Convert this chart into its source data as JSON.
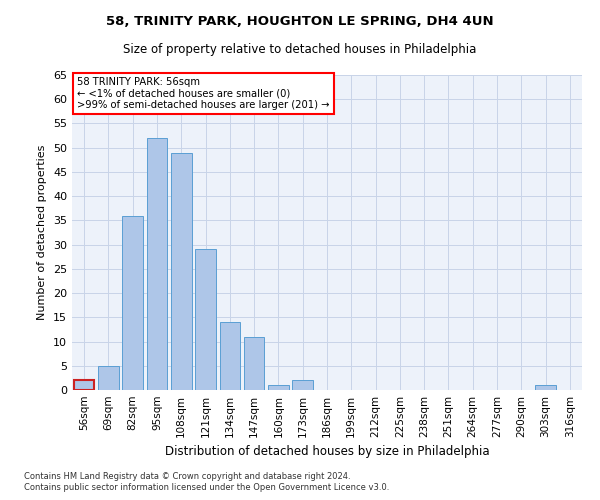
{
  "title": "58, TRINITY PARK, HOUGHTON LE SPRING, DH4 4UN",
  "subtitle": "Size of property relative to detached houses in Philadelphia",
  "xlabel": "Distribution of detached houses by size in Philadelphia",
  "ylabel": "Number of detached properties",
  "footnote1": "Contains HM Land Registry data © Crown copyright and database right 2024.",
  "footnote2": "Contains public sector information licensed under the Open Government Licence v3.0.",
  "annotation_title": "58 TRINITY PARK: 56sqm",
  "annotation_line1": "← <1% of detached houses are smaller (0)",
  "annotation_line2": ">99% of semi-detached houses are larger (201) →",
  "bar_color": "#aec6e8",
  "bar_edge_color": "#5a9fd4",
  "bar_highlight_color": "#cc2222",
  "grid_color": "#c8d4e8",
  "bg_color": "#edf2fa",
  "categories": [
    "56sqm",
    "69sqm",
    "82sqm",
    "95sqm",
    "108sqm",
    "121sqm",
    "134sqm",
    "147sqm",
    "160sqm",
    "173sqm",
    "186sqm",
    "199sqm",
    "212sqm",
    "225sqm",
    "238sqm",
    "251sqm",
    "264sqm",
    "277sqm",
    "290sqm",
    "303sqm",
    "316sqm"
  ],
  "values": [
    2,
    5,
    36,
    52,
    49,
    29,
    14,
    11,
    1,
    2,
    0,
    0,
    0,
    0,
    0,
    0,
    0,
    0,
    0,
    1,
    0
  ],
  "ylim": [
    0,
    65
  ],
  "yticks": [
    0,
    5,
    10,
    15,
    20,
    25,
    30,
    35,
    40,
    45,
    50,
    55,
    60,
    65
  ],
  "highlight_bar_index": 0
}
